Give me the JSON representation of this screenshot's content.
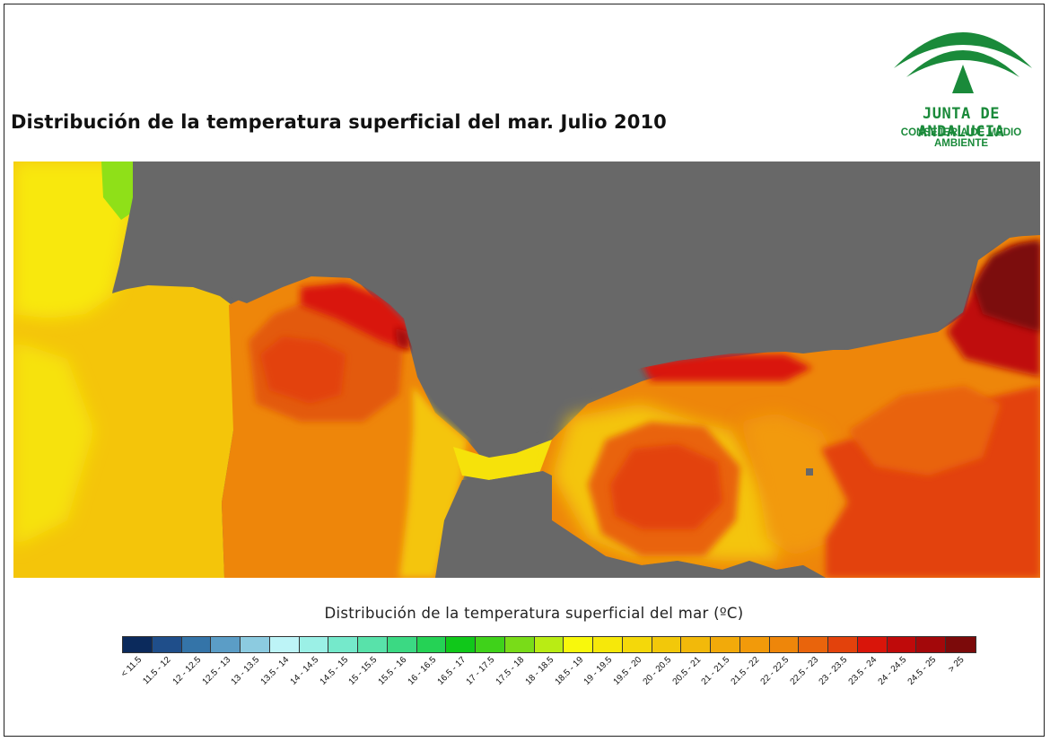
{
  "title": "Distribución de la temperatura superficial del mar. Julio 2010",
  "logo": {
    "name": "JUNTA DE ANDALUCIA",
    "subtitle": "CONSEJERÍA DE MEDIO AMBIENTE",
    "color": "#1a8a3a"
  },
  "legend": {
    "title": "Distribución de la temperatura superficial del mar (ºC)",
    "classes": [
      {
        "label": "< 11.5",
        "color": "#0b2a5c"
      },
      {
        "label": "11.5 - 12",
        "color": "#1f4e8a"
      },
      {
        "label": "12 - 12.5",
        "color": "#3474a8"
      },
      {
        "label": "12.5 - 13",
        "color": "#5b9dc6"
      },
      {
        "label": "13 - 13.5",
        "color": "#8ccbe0"
      },
      {
        "label": "13.5 - 14",
        "color": "#bdf4f7"
      },
      {
        "label": "14 - 14.5",
        "color": "#9bf0e6"
      },
      {
        "label": "14.5 - 15",
        "color": "#75e9cb"
      },
      {
        "label": "15 - 15.5",
        "color": "#58e2aa"
      },
      {
        "label": "15.5 - 16",
        "color": "#3bd983"
      },
      {
        "label": "16 - 16.5",
        "color": "#25d255"
      },
      {
        "label": "16.5 - 17",
        "color": "#10c81a"
      },
      {
        "label": "17 - 17.5",
        "color": "#3fd21a"
      },
      {
        "label": "17.5 - 18",
        "color": "#79dc18"
      },
      {
        "label": "18 - 18.5",
        "color": "#b9ec14"
      },
      {
        "label": "18.5 - 19",
        "color": "#f8f80c"
      },
      {
        "label": "19 - 19.5",
        "color": "#f6e80a"
      },
      {
        "label": "19.5 - 20",
        "color": "#f4d80a"
      },
      {
        "label": "20 - 20.5",
        "color": "#f2c80a"
      },
      {
        "label": "20.5 - 21",
        "color": "#f2b90a"
      },
      {
        "label": "21 - 21.5",
        "color": "#f2aa0a"
      },
      {
        "label": "21.5 - 22",
        "color": "#f29a0a"
      },
      {
        "label": "22 - 22.5",
        "color": "#ee860a"
      },
      {
        "label": "22.5 - 23",
        "color": "#e9640c"
      },
      {
        "label": "23 - 23.5",
        "color": "#e3420c"
      },
      {
        "label": "23.5 - 24",
        "color": "#d9150a"
      },
      {
        "label": "24 - 24.5",
        "color": "#bf0a0a"
      },
      {
        "label": "24.5 - 25",
        "color": "#a3080a"
      },
      {
        "label": "> 25",
        "color": "#7c0a0a"
      }
    ]
  },
  "map": {
    "land_color": "#686868",
    "regions": [
      {
        "name": "atlantic",
        "temperature_class": "20 - 20.5"
      },
      {
        "name": "gulf-of-cadiz",
        "temperature_class": "22 - 22.5"
      },
      {
        "name": "strait",
        "temperature_class": "19 - 19.5"
      },
      {
        "name": "alboran-west-gyre",
        "temperature_class": "23 - 23.5"
      },
      {
        "name": "alboran-east",
        "temperature_class": "22.5 - 23"
      },
      {
        "name": "balearic-coast",
        "temperature_class": "24.5 - 25"
      }
    ]
  }
}
